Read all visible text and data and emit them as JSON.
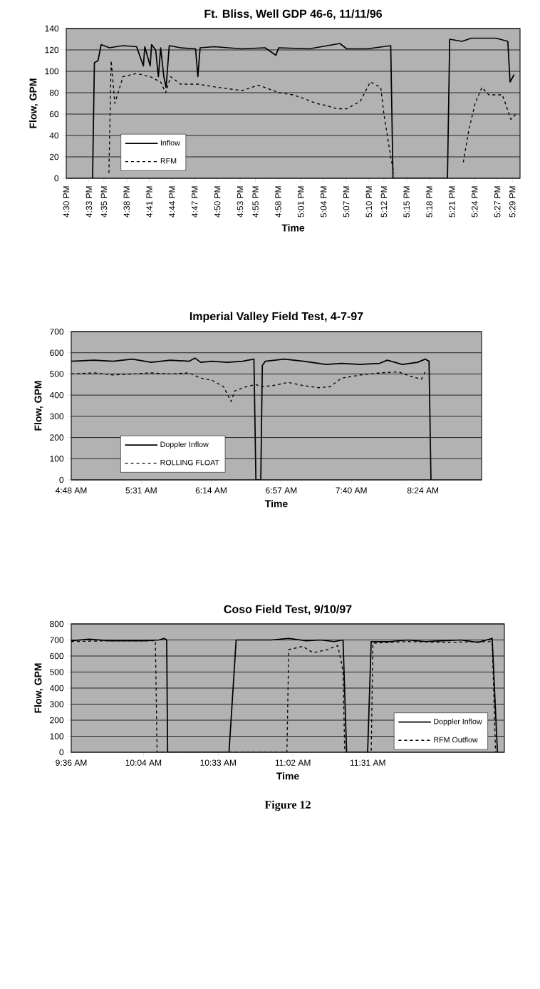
{
  "chart_data": [
    {
      "type": "line",
      "title": "Ft. Bliss, Well GDP 46-6, 11/11/96",
      "xlabel": "Time",
      "ylabel": "Flow, GPM",
      "grid": "y",
      "legend": "bottom left",
      "xlim": [
        16.5,
        17.5
      ],
      "ylim": [
        0,
        140
      ],
      "yticks": [
        0,
        20,
        40,
        60,
        80,
        100,
        120,
        140
      ],
      "xticks": [
        {
          "value": 16.5,
          "label": "4:30 PM"
        },
        {
          "value": 16.55,
          "label": "4:33 PM"
        },
        {
          "value": 16.583,
          "label": "4:35 PM"
        },
        {
          "value": 16.633,
          "label": "4:38 PM"
        },
        {
          "value": 16.683,
          "label": "4:41 PM"
        },
        {
          "value": 16.733,
          "label": "4:44 PM"
        },
        {
          "value": 16.783,
          "label": "4:47 PM"
        },
        {
          "value": 16.833,
          "label": "4:50 PM"
        },
        {
          "value": 16.883,
          "label": "4:53 PM"
        },
        {
          "value": 16.917,
          "label": "4:55 PM"
        },
        {
          "value": 16.967,
          "label": "4:58 PM"
        },
        {
          "value": 17.017,
          "label": "5:01 PM"
        },
        {
          "value": 17.067,
          "label": "5:04 PM"
        },
        {
          "value": 17.117,
          "label": "5:07 PM"
        },
        {
          "value": 17.167,
          "label": "5:10 PM"
        },
        {
          "value": 17.2,
          "label": "5:12 PM"
        },
        {
          "value": 17.25,
          "label": "5:15 PM"
        },
        {
          "value": 17.3,
          "label": "5:18 PM"
        },
        {
          "value": 17.35,
          "label": "5:21 PM"
        },
        {
          "value": 17.4,
          "label": "5:24 PM"
        },
        {
          "value": 17.45,
          "label": "5:27 PM"
        },
        {
          "value": 17.483,
          "label": "5:29 PM"
        }
      ],
      "series": [
        {
          "name": "Inflow",
          "color": "#000000",
          "line_style": "solid",
          "x": [
            16.558,
            16.562,
            16.57,
            16.577,
            16.595,
            16.625,
            16.655,
            16.67,
            16.673,
            16.685,
            16.688,
            16.697,
            16.703,
            16.708,
            16.715,
            16.72,
            16.727,
            16.752,
            16.785,
            16.79,
            16.795,
            16.827,
            16.887,
            16.938,
            16.962,
            16.968,
            17.035,
            17.103,
            17.118,
            17.163,
            17.215,
            17.22,
            17.34,
            17.345,
            17.372,
            17.393,
            17.447,
            17.473,
            17.478,
            17.487
          ],
          "values": [
            0,
            108,
            110,
            125,
            122,
            124,
            123,
            105,
            123,
            105,
            125,
            120,
            95,
            122,
            95,
            85,
            124,
            122,
            121,
            95,
            122,
            123,
            121,
            122,
            115,
            122,
            121,
            126,
            121,
            121,
            124,
            0,
            0,
            130,
            128,
            131,
            131,
            128,
            90,
            97
          ]
        },
        {
          "name": "RFM",
          "color": "#000000",
          "line_style": "dashed",
          "x": [
            16.594,
            16.599,
            16.607,
            16.625,
            16.655,
            16.685,
            16.708,
            16.719,
            16.73,
            16.752,
            16.79,
            16.834,
            16.887,
            16.924,
            16.969,
            16.999,
            17.021,
            17.051,
            17.073,
            17.096,
            17.118,
            17.148,
            17.17,
            17.193,
            17.2,
            17.215,
            17.222,
            17.3,
            17.375,
            17.387,
            17.401,
            17.416,
            17.431,
            17.461,
            17.48,
            17.491
          ],
          "values": [
            5,
            110,
            70,
            95,
            98,
            95,
            90,
            80,
            95,
            88,
            88,
            85,
            82,
            87,
            80,
            78,
            75,
            70,
            68,
            65,
            65,
            72,
            90,
            85,
            60,
            20,
            5,
            null,
            15,
            45,
            70,
            85,
            78,
            78,
            55,
            60
          ]
        }
      ]
    },
    {
      "type": "line",
      "title": "Imperial Valley Field Test, 4-7-97",
      "xlabel": "Time",
      "ylabel": "Flow, GPM",
      "grid": "y",
      "legend": "bottom left",
      "xlim": [
        4.8,
        9.0
      ],
      "ylim": [
        0,
        700
      ],
      "yticks": [
        0,
        100,
        200,
        300,
        400,
        500,
        600,
        700
      ],
      "xticks": [
        {
          "value": 4.8,
          "label": "4:48 AM"
        },
        {
          "value": 5.517,
          "label": "5:31 AM"
        },
        {
          "value": 6.233,
          "label": "6:14 AM"
        },
        {
          "value": 6.95,
          "label": "6:57 AM"
        },
        {
          "value": 7.667,
          "label": "7:40 AM"
        },
        {
          "value": 8.4,
          "label": "8:24 AM"
        }
      ],
      "series": [
        {
          "name": "Doppler Inflow",
          "color": "#000000",
          "line_style": "solid",
          "x": [
            4.8,
            5.034,
            5.229,
            5.423,
            5.618,
            5.813,
            6.008,
            6.066,
            6.125,
            6.242,
            6.397,
            6.553,
            6.67,
            6.69,
            6.74,
            6.756,
            6.787,
            6.982,
            7.177,
            7.41,
            7.566,
            7.761,
            7.956,
            8.034,
            8.189,
            8.345,
            8.423,
            8.462,
            8.482
          ],
          "values": [
            560,
            565,
            560,
            570,
            555,
            565,
            560,
            575,
            555,
            560,
            555,
            560,
            570,
            0,
            0,
            540,
            560,
            570,
            560,
            545,
            550,
            545,
            550,
            565,
            545,
            555,
            570,
            560,
            0
          ]
        },
        {
          "name": "ROLLING FLOAT",
          "color": "#000000",
          "line_style": "dashed",
          "x": [
            4.8,
            5.034,
            5.229,
            5.423,
            5.618,
            5.813,
            6.008,
            6.125,
            6.242,
            6.358,
            6.436,
            6.475,
            6.592,
            6.69,
            6.748,
            6.865,
            7.021,
            7.177,
            7.332,
            7.449,
            7.566,
            7.761,
            7.956,
            8.15,
            8.267,
            8.384,
            8.423
          ],
          "values": [
            500,
            505,
            495,
            500,
            505,
            500,
            505,
            480,
            470,
            440,
            370,
            420,
            440,
            450,
            440,
            445,
            460,
            445,
            435,
            440,
            480,
            495,
            505,
            510,
            490,
            475,
            510
          ]
        }
      ]
    },
    {
      "type": "line",
      "title": "Coso Field Test, 9/10/97",
      "xlabel": "Time",
      "ylabel": "Flow, GPM",
      "grid": "y",
      "legend": "bottom right",
      "annotations": [
        "Figure 12"
      ],
      "xlim": [
        9.6,
        12.4
      ],
      "ylim": [
        0,
        800
      ],
      "yticks": [
        0,
        100,
        200,
        300,
        400,
        500,
        600,
        700,
        800
      ],
      "xticks": [
        {
          "value": 9.6,
          "label": "9:36 AM"
        },
        {
          "value": 10.067,
          "label": "10:04 AM"
        },
        {
          "value": 10.55,
          "label": "10:33 AM"
        },
        {
          "value": 11.033,
          "label": "11:02 AM"
        },
        {
          "value": 11.517,
          "label": "11:31 AM"
        }
      ],
      "series": [
        {
          "name": "Doppler Inflow",
          "color": "#000000",
          "line_style": "solid",
          "x": [
            9.6,
            9.713,
            9.849,
            9.963,
            10.076,
            10.167,
            10.201,
            10.217,
            10.223,
            10.62,
            10.666,
            10.756,
            10.892,
            11.006,
            11.119,
            11.21,
            11.3,
            11.357,
            11.38,
            11.516,
            11.539,
            11.663,
            11.776,
            11.89,
            12.003,
            12.117,
            12.23,
            12.321,
            12.355
          ],
          "values": [
            695,
            705,
            695,
            695,
            695,
            700,
            710,
            700,
            0,
            0,
            700,
            700,
            700,
            710,
            695,
            700,
            690,
            700,
            0,
            0,
            690,
            690,
            700,
            690,
            695,
            700,
            685,
            710,
            0
          ]
        },
        {
          "name": "RFM Outflow",
          "color": "#000000",
          "line_style": "dashed",
          "x": [
            9.6,
            9.849,
            10.144,
            10.155,
            10.994,
            11.006,
            11.096,
            11.164,
            11.255,
            11.323,
            11.346,
            11.357,
            11.368,
            11.539,
            11.55,
            11.776,
            12.003,
            12.321,
            12.343
          ],
          "values": [
            690,
            695,
            695,
            0,
            0,
            640,
            660,
            620,
            640,
            665,
            560,
            500,
            0,
            0,
            680,
            690,
            685,
            690,
            0
          ]
        }
      ]
    }
  ]
}
